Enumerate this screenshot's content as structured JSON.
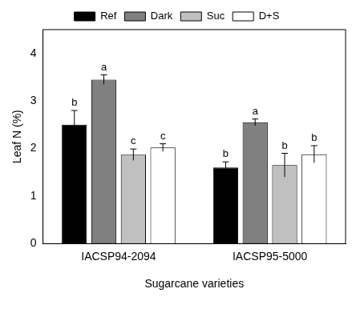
{
  "chart_data": {
    "type": "bar",
    "x_label": "Sugarcane varieties",
    "y_label": "Leaf N (%)",
    "categories": [
      "IACSP94-2094",
      "IACSP95-5000"
    ],
    "series": [
      {
        "name": "Ref",
        "color": "#000000",
        "values": [
          2.5,
          1.6
        ],
        "errors": [
          0.3,
          0.12
        ],
        "letters": [
          "b",
          "b"
        ]
      },
      {
        "name": "Dark",
        "color": "#808080",
        "values": [
          3.45,
          2.55
        ],
        "errors": [
          0.1,
          0.07
        ],
        "letters": [
          "a",
          "a"
        ]
      },
      {
        "name": "Suc",
        "color": "#c0c0c0",
        "values": [
          1.87,
          1.65
        ],
        "errors": [
          0.12,
          0.25
        ],
        "letters": [
          "c",
          "b"
        ]
      },
      {
        "name": "D+S",
        "color": "#ffffff",
        "values": [
          2.02,
          1.88
        ],
        "errors": [
          0.08,
          0.18
        ],
        "letters": [
          "c",
          "b"
        ]
      }
    ],
    "ylim": [
      0,
      4.5
    ],
    "yticks": [
      0,
      1,
      2,
      3,
      4
    ],
    "grid": false,
    "legend": "top"
  }
}
